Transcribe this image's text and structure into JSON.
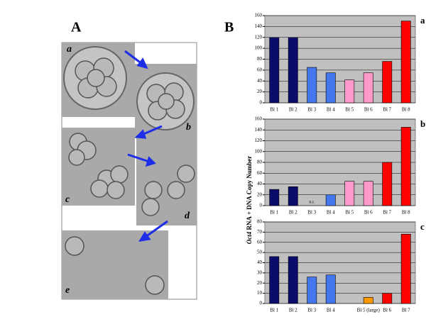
{
  "figure": {
    "panel_a_label": "A",
    "panel_b_label": "B",
    "image_labels": [
      "a",
      "b",
      "c",
      "d",
      "e"
    ],
    "y_axis_label_gene": "Oct4",
    "y_axis_label_rest": " RNA + DNA Copy Number"
  },
  "chart_data": [
    {
      "type": "bar",
      "title": "a",
      "categories": [
        "Bl 1",
        "Bl 2",
        "Bl 3",
        "Bl 4",
        "Bl 5",
        "Bl 6",
        "Bl 7",
        "Bl 8"
      ],
      "values": [
        120,
        120,
        65,
        55,
        42,
        55,
        76,
        150
      ],
      "colors": [
        "#0b0b6b",
        "#0b0b6b",
        "#4477ee",
        "#4477ee",
        "#ff99cc",
        "#ff99cc",
        "#ff0000",
        "#ff0000"
      ],
      "ylim": [
        0,
        160
      ],
      "yticks": [
        0,
        20,
        40,
        60,
        80,
        100,
        120,
        140,
        160
      ],
      "grid": true
    },
    {
      "type": "bar",
      "title": "b",
      "categories": [
        "Bl 1",
        "Bl 2",
        "Bl 3",
        "Bl 4",
        "Bl 5",
        "Bl 6",
        "Bl 7",
        "Bl 8"
      ],
      "values": [
        30,
        35,
        null,
        20,
        45,
        45,
        80,
        145
      ],
      "value_labels": [
        null,
        null,
        "n.r.",
        null,
        null,
        null,
        null,
        null
      ],
      "colors": [
        "#0b0b6b",
        "#0b0b6b",
        "#4477ee",
        "#4477ee",
        "#ff99cc",
        "#ff99cc",
        "#ff0000",
        "#ff0000"
      ],
      "ylim": [
        0,
        160
      ],
      "yticks": [
        0,
        20,
        40,
        60,
        80,
        100,
        120,
        140,
        160
      ],
      "grid": true
    },
    {
      "type": "bar",
      "title": "c",
      "categories": [
        "Bl 1",
        "Bl 2",
        "Bl 3",
        "Bl 4",
        null,
        "Bl 5 (large)",
        "Bl 6",
        "Bl 7"
      ],
      "values": [
        46,
        46,
        26,
        28,
        null,
        6,
        10,
        68
      ],
      "colors": [
        "#0b0b6b",
        "#0b0b6b",
        "#4477ee",
        "#4477ee",
        null,
        "#ff9900",
        "#ff0000",
        "#ff0000"
      ],
      "ylim": [
        0,
        80
      ],
      "yticks": [
        0,
        10,
        20,
        30,
        40,
        50,
        60,
        70,
        80
      ],
      "grid": true
    }
  ]
}
